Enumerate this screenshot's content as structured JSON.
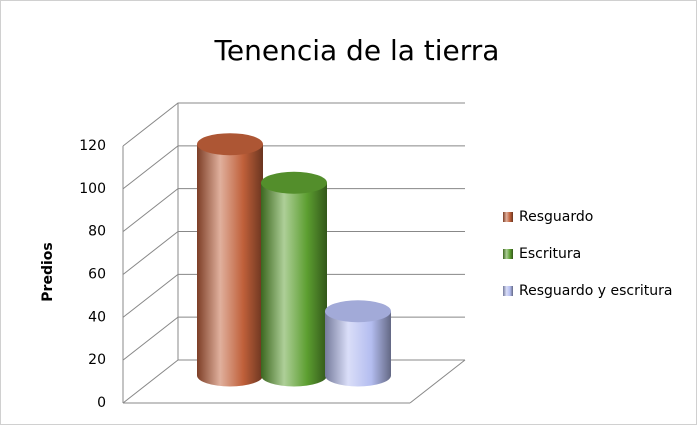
{
  "chart_data": {
    "type": "bar",
    "title": "Tenencia de la tierra",
    "y_label": "Predios",
    "categories": [
      null
    ],
    "series": [
      {
        "name": "Resguardo",
        "color": "#c0603a",
        "values": [
          108
        ]
      },
      {
        "name": "Escritura",
        "color": "#5c9e30",
        "values": [
          90
        ]
      },
      {
        "name": "Resguardo y escritura",
        "color": "#b4bdf0",
        "values": [
          30
        ]
      }
    ],
    "ylim": [
      0,
      120
    ],
    "yticks": [
      0,
      20,
      40,
      60,
      80,
      100,
      120
    ],
    "grid": true,
    "legend": "right"
  }
}
